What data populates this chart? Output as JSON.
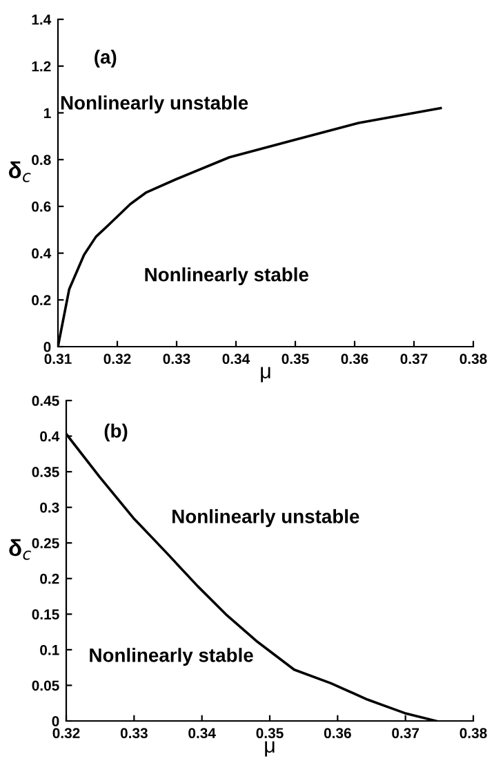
{
  "chart_data": [
    {
      "type": "line",
      "xlabel": "μ",
      "ylabel": "δ$_{c}$",
      "xlim": [
        0.31,
        0.38
      ],
      "ylim": [
        0,
        1.4
      ],
      "xticks": [
        0.31,
        0.32,
        0.33,
        0.34,
        0.35,
        0.36,
        0.37,
        0.38
      ],
      "yticks": [
        0,
        0.2,
        0.4,
        0.6,
        0.8,
        1,
        1.2,
        1.4
      ],
      "grid": false,
      "legend": false,
      "marker": "none",
      "line_style": "solid",
      "annotations": [
        "(a)",
        "Nonlinearly unstable",
        "Nonlinearly stable"
      ],
      "series": [
        {
          "color": "#000000",
          "x": [
            0.31,
            0.3119,
            0.3144,
            0.3164,
            0.3185,
            0.3222,
            0.3249,
            0.33,
            0.3389,
            0.3498,
            0.3607,
            0.3745
          ],
          "values": [
            0,
            0.246,
            0.393,
            0.47,
            0.52,
            0.61,
            0.66,
            0.717,
            0.81,
            0.884,
            0.957,
            1.02
          ]
        }
      ]
    },
    {
      "type": "line",
      "xlabel": "μ",
      "ylabel": "δ$_{c}$",
      "xlim": [
        0.32,
        0.38
      ],
      "ylim": [
        0,
        0.45
      ],
      "xticks": [
        0.32,
        0.33,
        0.34,
        0.35,
        0.36,
        0.37,
        0.38
      ],
      "yticks": [
        0,
        0.05,
        0.1,
        0.15,
        0.2,
        0.25,
        0.3,
        0.35,
        0.4,
        0.45
      ],
      "grid": false,
      "legend": false,
      "marker": "none",
      "line_style": "solid",
      "annotations": [
        "(b)",
        "Nonlinearly unstable",
        "Nonlinearly stable"
      ],
      "series": [
        {
          "color": "#000000",
          "x": [
            0.32,
            0.3249,
            0.3299,
            0.3347,
            0.3394,
            0.3435,
            0.3482,
            0.3536,
            0.359,
            0.3644,
            0.3699,
            0.3745
          ],
          "values": [
            0.403,
            0.343,
            0.285,
            0.237,
            0.189,
            0.15,
            0.111,
            0.072,
            0.053,
            0.03,
            0.011,
            0
          ]
        }
      ]
    }
  ]
}
